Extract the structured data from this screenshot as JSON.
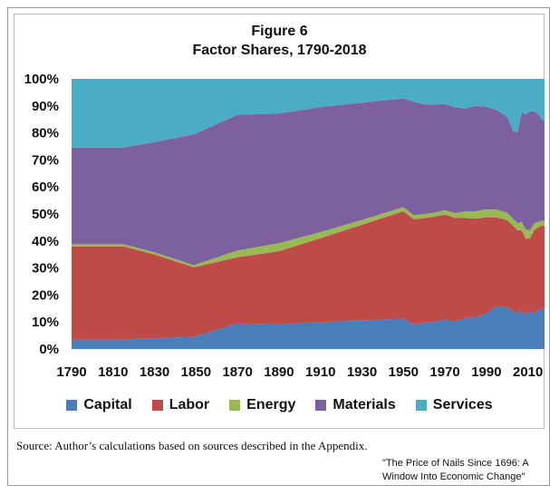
{
  "chart_data": {
    "type": "area",
    "stacked": true,
    "title": "Figure 6",
    "subtitle": "Factor Shares, 1790-2018",
    "xlabel": "",
    "ylabel": "",
    "xlim": [
      1790,
      2018
    ],
    "ylim": [
      0,
      100
    ],
    "x_ticks": [
      1790,
      1810,
      1830,
      1850,
      1870,
      1890,
      1910,
      1930,
      1950,
      1970,
      1990,
      2010
    ],
    "y_ticks": [
      "0%",
      "10%",
      "20%",
      "30%",
      "40%",
      "50%",
      "60%",
      "70%",
      "80%",
      "90%",
      "100%"
    ],
    "legend_position": "bottom",
    "x": [
      1790,
      1800,
      1815,
      1830,
      1849,
      1870,
      1890,
      1910,
      1930,
      1950,
      1955,
      1960,
      1965,
      1970,
      1975,
      1980,
      1985,
      1990,
      1995,
      2000,
      2003,
      2005,
      2007,
      2009,
      2011,
      2013,
      2015,
      2017,
      2018
    ],
    "series": [
      {
        "name": "Capital",
        "color": "#4a7ebb",
        "values": [
          3.5,
          3.5,
          3.5,
          4.0,
          4.5,
          9.5,
          9.2,
          10.0,
          10.6,
          11.2,
          9.0,
          9.8,
          10.0,
          11.0,
          10.2,
          11.5,
          11.8,
          13.2,
          15.8,
          15.5,
          14.0,
          13.0,
          14.5,
          12.5,
          14.0,
          13.0,
          14.5,
          14.8,
          15.0
        ]
      },
      {
        "name": "Labor",
        "color": "#be4b48",
        "values": [
          34.5,
          34.5,
          34.5,
          31.0,
          25.8,
          24.5,
          27.0,
          31.0,
          35.4,
          39.8,
          39.0,
          38.7,
          39.0,
          38.8,
          38.3,
          37.0,
          36.5,
          35.6,
          33.0,
          32.2,
          31.5,
          31.0,
          29.5,
          28.3,
          27.0,
          31.0,
          30.5,
          31.0,
          30.5
        ]
      },
      {
        "name": "Energy",
        "color": "#98b954",
        "values": [
          0.8,
          0.8,
          0.8,
          0.8,
          0.7,
          2.5,
          3.0,
          2.3,
          1.8,
          1.5,
          1.5,
          1.5,
          1.5,
          1.6,
          1.8,
          2.5,
          2.7,
          2.9,
          2.8,
          2.8,
          2.6,
          2.6,
          3.0,
          3.5,
          3.0,
          2.5,
          2.0,
          1.8,
          1.5
        ]
      },
      {
        "name": "Materials",
        "color": "#7d60a0",
        "values": [
          35.8,
          35.8,
          35.8,
          40.8,
          48.5,
          50.2,
          48.0,
          46.2,
          43.4,
          40.3,
          42.0,
          40.5,
          40.0,
          39.3,
          39.2,
          38.0,
          39.0,
          38.0,
          36.9,
          35.5,
          32.5,
          33.5,
          40.5,
          42.5,
          44.0,
          41.5,
          40.0,
          37.2,
          37.5
        ]
      },
      {
        "name": "Services",
        "color": "#4bacc6",
        "values": [
          25.4,
          25.4,
          25.4,
          23.4,
          20.5,
          13.3,
          12.8,
          10.5,
          8.8,
          7.2,
          8.5,
          9.5,
          9.5,
          9.3,
          10.5,
          11.0,
          10.0,
          10.3,
          11.5,
          14.0,
          19.4,
          19.9,
          12.5,
          13.2,
          12.0,
          12.0,
          13.0,
          15.2,
          15.5
        ]
      }
    ]
  },
  "footer": {
    "source": "Source: Author’s calculations based on sources described in the Appendix.",
    "citation": "\"The Price of Nails Since 1696: A Window Into Economic Change\""
  }
}
